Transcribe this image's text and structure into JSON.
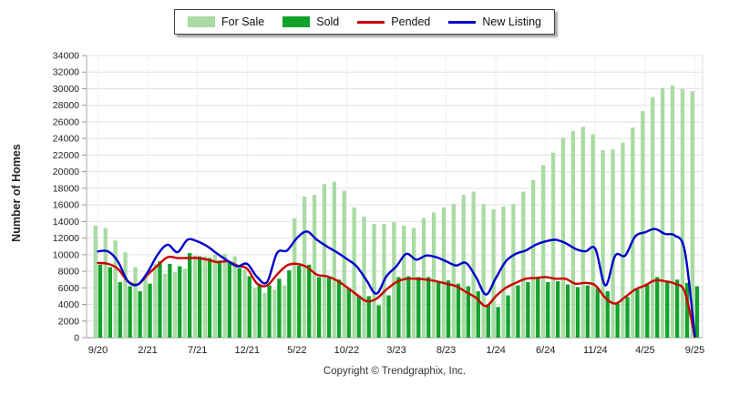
{
  "legend": {
    "items": [
      {
        "label": "For Sale",
        "type": "bar",
        "color": "#a9dba3"
      },
      {
        "label": "Sold",
        "type": "bar",
        "color": "#12a22b"
      },
      {
        "label": "Pended",
        "type": "line",
        "color": "#cc0000"
      },
      {
        "label": "New Listing",
        "type": "line",
        "color": "#0000cd"
      }
    ]
  },
  "y_axis": {
    "title": "Number of Homes",
    "min": 0,
    "max": 34000,
    "step": 2000
  },
  "x_axis": {
    "tick_labels": [
      "9/20",
      "2/21",
      "7/21",
      "12/21",
      "5/22",
      "10/22",
      "3/23",
      "8/23",
      "1/24",
      "6/24",
      "11/24",
      "4/25",
      "9/25"
    ],
    "tick_every": 5
  },
  "footer": {
    "copyright": "Copyright © Trendgraphix, Inc."
  },
  "chart_data": {
    "type": "combo",
    "title": "",
    "ylabel": "Number of Homes",
    "ylim": [
      0,
      34000
    ],
    "grid": true,
    "legend_position": "top-center",
    "months": [
      "9/20",
      "10/20",
      "11/20",
      "12/20",
      "1/21",
      "2/21",
      "3/21",
      "4/21",
      "5/21",
      "6/21",
      "7/21",
      "8/21",
      "9/21",
      "10/21",
      "11/21",
      "12/21",
      "1/22",
      "2/22",
      "3/22",
      "4/22",
      "5/22",
      "6/22",
      "7/22",
      "8/22",
      "9/22",
      "10/22",
      "11/22",
      "12/22",
      "1/23",
      "2/23",
      "3/23",
      "4/23",
      "5/23",
      "6/23",
      "7/23",
      "8/23",
      "9/23",
      "10/23",
      "11/23",
      "12/23",
      "1/24",
      "2/24",
      "3/24",
      "4/24",
      "5/24",
      "6/24",
      "7/24",
      "8/24",
      "9/24",
      "10/24",
      "11/24",
      "12/24",
      "1/25",
      "2/25",
      "3/25",
      "4/25",
      "5/25",
      "6/25",
      "7/25",
      "8/25",
      "9/25"
    ],
    "series": [
      {
        "name": "For Sale",
        "type": "bar",
        "color": "#a9dba3",
        "values": [
          13500,
          13200,
          11700,
          10300,
          8500,
          7300,
          8900,
          7700,
          7900,
          8300,
          9900,
          9800,
          10000,
          10100,
          9800,
          8200,
          6000,
          5400,
          5800,
          6300,
          14400,
          17000,
          17200,
          18500,
          18800,
          17700,
          15700,
          14600,
          13700,
          13700,
          13900,
          13500,
          13200,
          14400,
          15100,
          15700,
          16100,
          17200,
          17600,
          16100,
          15500,
          15800,
          16100,
          17600,
          19000,
          20800,
          22300,
          24100,
          24900,
          25400,
          24500,
          22600,
          22700,
          23500,
          25300,
          27300,
          29000,
          30100,
          30400,
          30000,
          29700
        ]
      },
      {
        "name": "Sold",
        "type": "bar",
        "color": "#12a22b",
        "values": [
          8800,
          8500,
          6700,
          6200,
          5600,
          6500,
          9200,
          8900,
          8600,
          10200,
          9800,
          9600,
          9300,
          9100,
          8400,
          7400,
          6500,
          6300,
          7100,
          8100,
          8700,
          8800,
          7300,
          7400,
          7000,
          5900,
          5100,
          5000,
          3900,
          5100,
          7300,
          7400,
          7300,
          7300,
          6700,
          6900,
          6500,
          6200,
          5600,
          4000,
          3700,
          5100,
          6300,
          6700,
          7200,
          6700,
          6800,
          6400,
          6100,
          6300,
          5900,
          5600,
          4100,
          4900,
          5800,
          6500,
          7300,
          6800,
          7000,
          6600,
          6200
        ]
      },
      {
        "name": "Pended",
        "type": "line",
        "color": "#cc0000",
        "values": [
          9000,
          8900,
          8300,
          6800,
          6400,
          7600,
          8700,
          9700,
          9600,
          9600,
          9600,
          9400,
          9100,
          9200,
          8700,
          8300,
          6500,
          6300,
          7600,
          8700,
          8900,
          8500,
          7600,
          7400,
          6900,
          6100,
          5200,
          4400,
          4700,
          5800,
          6700,
          7100,
          7100,
          7000,
          6800,
          6500,
          6200,
          5500,
          4800,
          3800,
          5000,
          6000,
          6600,
          7100,
          7200,
          7300,
          7100,
          7100,
          6500,
          6600,
          6300,
          4800,
          4100,
          4900,
          5800,
          6300,
          6900,
          6800,
          6500,
          5500,
          100
        ]
      },
      {
        "name": "New Listing",
        "type": "line",
        "color": "#0000cd",
        "values": [
          10400,
          10400,
          9200,
          6800,
          6400,
          7900,
          10000,
          11200,
          10300,
          11800,
          11600,
          11000,
          10100,
          9300,
          8600,
          8900,
          7300,
          6700,
          10200,
          10500,
          12000,
          12800,
          11800,
          11000,
          10300,
          9500,
          8600,
          6900,
          5300,
          7400,
          8600,
          10100,
          9400,
          9900,
          9700,
          9200,
          8700,
          9000,
          7300,
          5200,
          7200,
          9200,
          10100,
          10500,
          11200,
          11600,
          11800,
          11400,
          10700,
          10400,
          10700,
          6300,
          9900,
          9900,
          12200,
          12700,
          13100,
          12500,
          12300,
          10400,
          200
        ]
      }
    ]
  }
}
